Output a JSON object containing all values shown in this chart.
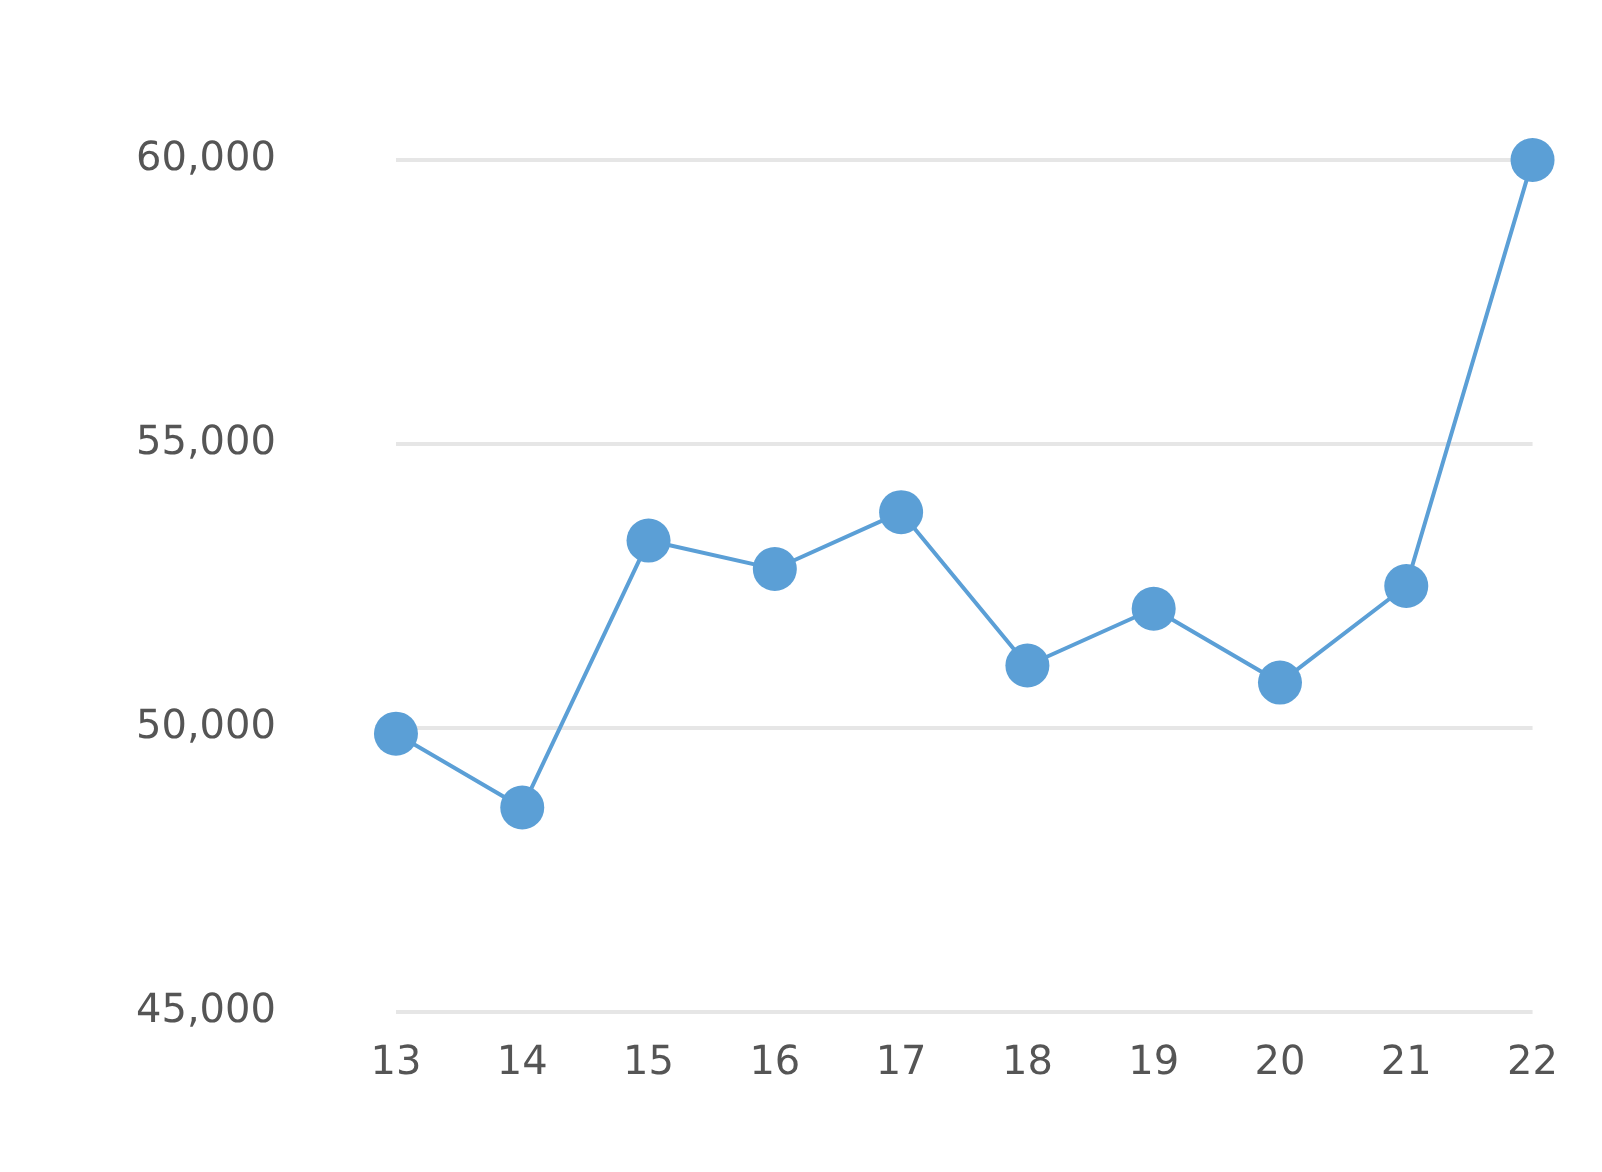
{
  "chart_data": {
    "type": "line",
    "categories": [
      "13",
      "14",
      "15",
      "16",
      "17",
      "18",
      "19",
      "20",
      "21",
      "22"
    ],
    "series": [
      {
        "color": "#5b9fd6",
        "values": [
          49900,
          48600,
          53300,
          52800,
          53800,
          51100,
          52100,
          50800,
          52500,
          60000
        ]
      }
    ],
    "ylim": [
      45000,
      60000
    ],
    "yticks": [
      {
        "value": 45000,
        "label": "45,000"
      },
      {
        "value": 50000,
        "label": "50,000"
      },
      {
        "value": 55000,
        "label": "55,000"
      },
      {
        "value": 60000,
        "label": "60,000"
      }
    ],
    "grid": "y",
    "legend": false,
    "marker": "circle",
    "line_style": "solid"
  }
}
